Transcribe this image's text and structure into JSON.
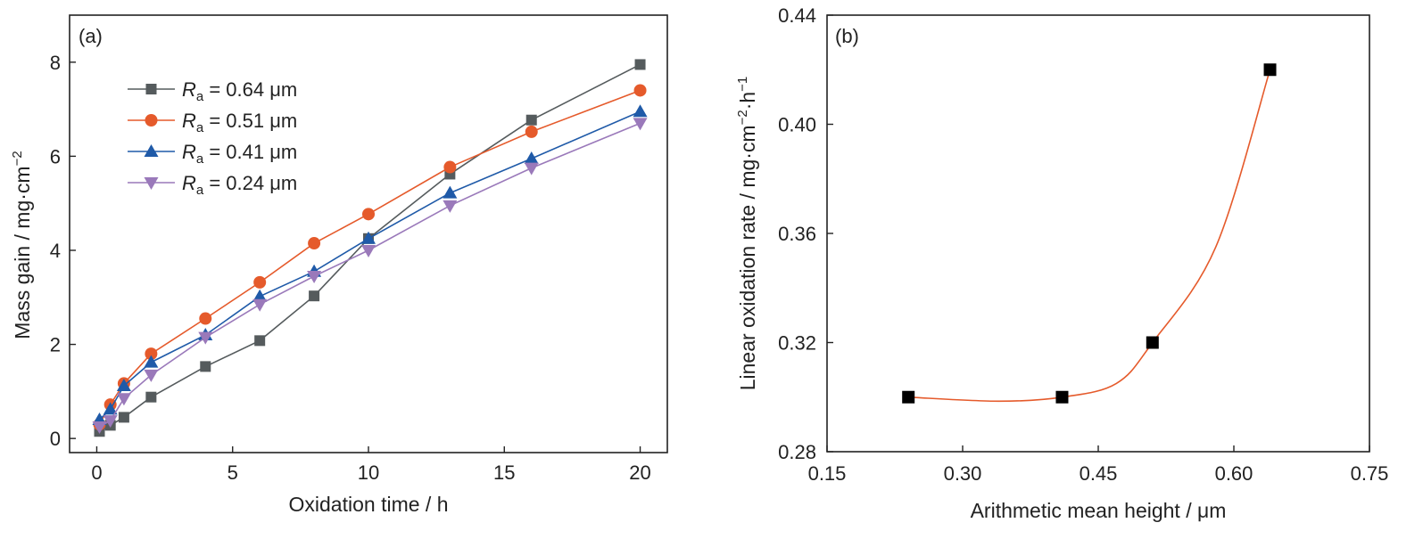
{
  "chart_data": [
    {
      "type": "line",
      "panel_label": "(a)",
      "xlabel": "Oxidation time / h",
      "ylabel": "Mass gain / mg·cm",
      "ylabel_sup": "−2",
      "xlim": [
        -1,
        21
      ],
      "ylim": [
        -0.3,
        9
      ],
      "xticks": [
        0,
        5,
        10,
        15,
        20
      ],
      "yticks": [
        0,
        2,
        4,
        6,
        8
      ],
      "legend_position": "upper-left",
      "series": [
        {
          "name": "= 0.64 μm",
          "name_prefix": "R",
          "name_sub": "a",
          "color": "#555b5d",
          "marker": "square",
          "x": [
            0.1,
            0.5,
            1,
            2,
            4,
            6,
            8,
            10,
            13,
            16,
            20
          ],
          "y": [
            0.15,
            0.28,
            0.45,
            0.88,
            1.53,
            2.08,
            3.03,
            4.25,
            5.62,
            6.77,
            7.95
          ]
        },
        {
          "name": "= 0.51 μm",
          "name_prefix": "R",
          "name_sub": "a",
          "color": "#e55a2b",
          "marker": "circle",
          "x": [
            0.1,
            0.5,
            1,
            2,
            4,
            6,
            8,
            10,
            13,
            16,
            20
          ],
          "y": [
            0.3,
            0.72,
            1.17,
            1.8,
            2.55,
            3.32,
            4.15,
            4.77,
            5.77,
            6.52,
            7.4
          ]
        },
        {
          "name": "= 0.41 μm",
          "name_prefix": "R",
          "name_sub": "a",
          "color": "#1f5aa8",
          "marker": "triangle-up",
          "x": [
            0.1,
            0.5,
            1,
            2,
            4,
            6,
            8,
            10,
            13,
            16,
            20
          ],
          "y": [
            0.4,
            0.62,
            1.12,
            1.62,
            2.2,
            3.02,
            3.55,
            4.25,
            5.22,
            5.95,
            6.95
          ]
        },
        {
          "name": "= 0.24 μm",
          "name_prefix": "R",
          "name_sub": "a",
          "color": "#9a79ba",
          "marker": "triangle-down",
          "x": [
            0.1,
            0.5,
            1,
            2,
            4,
            6,
            8,
            10,
            13,
            16,
            20
          ],
          "y": [
            0.25,
            0.38,
            0.85,
            1.35,
            2.15,
            2.85,
            3.45,
            4.0,
            4.95,
            5.75,
            6.7
          ]
        }
      ]
    },
    {
      "type": "scatter",
      "panel_label": "(b)",
      "xlabel": "Arithmetic mean height / μm",
      "ylabel": "Linear oxidation rate / mg·cm",
      "ylabel_sup1": "−2",
      "ylabel_mid": "·h",
      "ylabel_sup2": "−1",
      "xlim": [
        0.15,
        0.75
      ],
      "ylim": [
        0.28,
        0.44
      ],
      "xticks": [
        "0.15",
        "0.30",
        "0.45",
        "0.60",
        "0.75"
      ],
      "yticks": [
        "0.28",
        "0.32",
        "0.36",
        "0.40",
        "0.44"
      ],
      "points": {
        "color": "#000000",
        "marker": "square",
        "x": [
          0.24,
          0.41,
          0.51,
          0.64
        ],
        "y": [
          0.3,
          0.3,
          0.32,
          0.42
        ]
      },
      "fit_curve": {
        "color": "#e55a2b"
      }
    }
  ]
}
